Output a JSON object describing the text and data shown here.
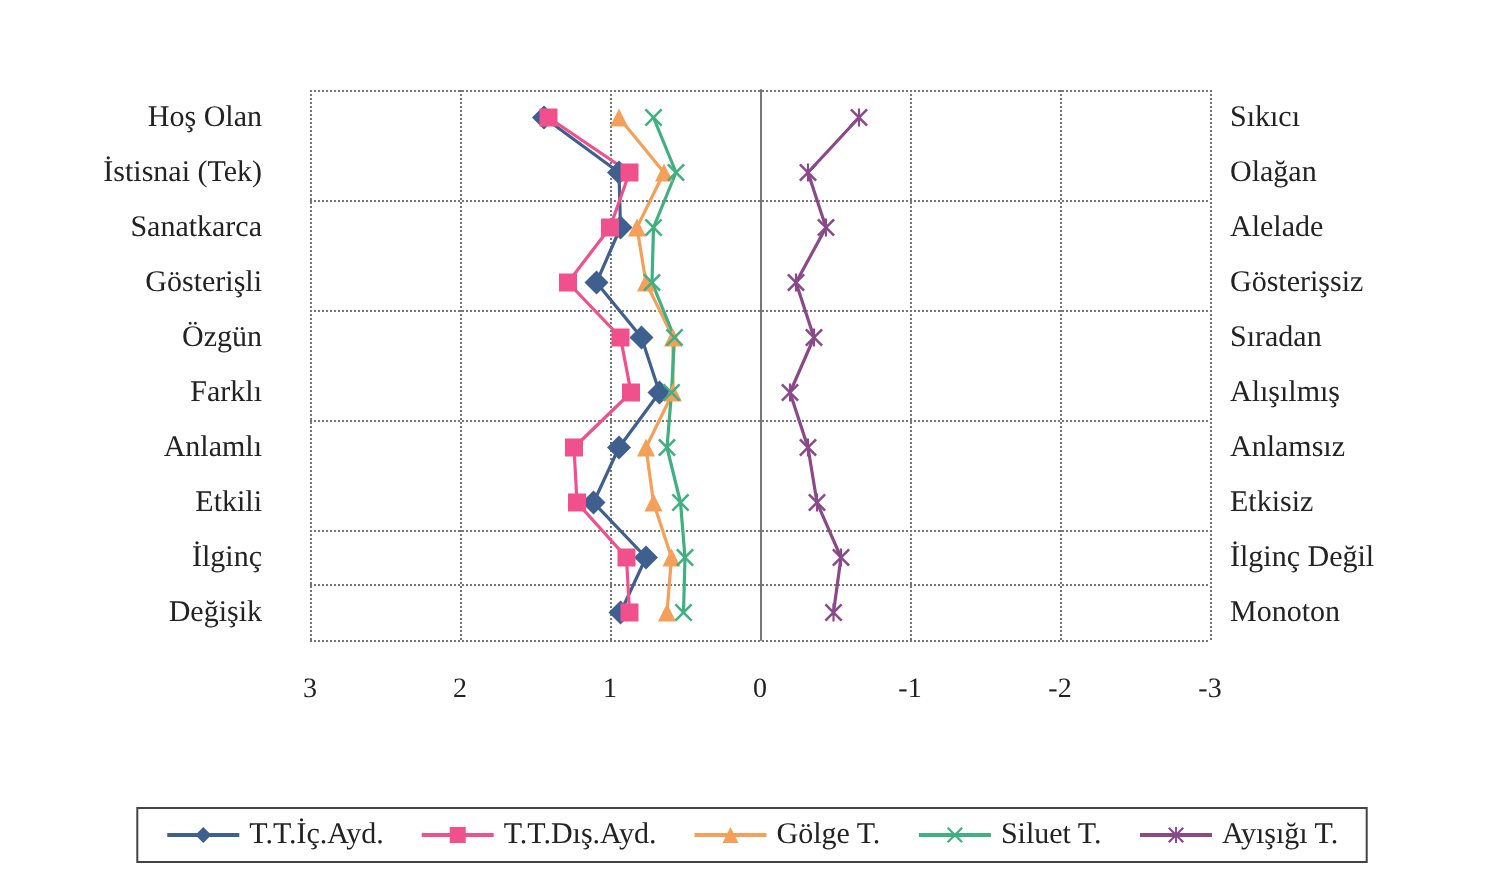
{
  "chart_data": {
    "type": "line",
    "categories": [
      "Hoş Olan",
      "İstisnai (Tek)",
      "Sanatkarca",
      "Gösterişli",
      "Özgün",
      "Farklı",
      "Anlamlı",
      "Etkili",
      "İlginç",
      "Değişik"
    ],
    "y2_categories": [
      "Sıkıcı",
      "Olağan",
      "Alelade",
      "Gösterişsiz",
      "Sıradan",
      "Alışılmış",
      "Anlamsız",
      "Etkisiz",
      "İlginç Değil",
      "Monoton"
    ],
    "orientation": "horizontal",
    "xlim": [
      3,
      -3
    ],
    "xticks": [
      3,
      2,
      1,
      0,
      -1,
      -2,
      -3
    ],
    "grid": true,
    "legend": "bottom",
    "series": [
      {
        "name": "T.T.İç.Ayd.",
        "color": "#3f5f8f",
        "marker": "diamond",
        "values": [
          1.44,
          0.94,
          0.93,
          1.09,
          0.79,
          0.67,
          0.94,
          1.11,
          0.76,
          0.93
        ]
      },
      {
        "name": "T.T.Dış.Ayd.",
        "color": "#f0508c",
        "marker": "square",
        "values": [
          1.41,
          0.87,
          1.0,
          1.28,
          0.93,
          0.86,
          1.24,
          1.22,
          0.89,
          0.87
        ]
      },
      {
        "name": "Gölge T.",
        "color": "#f5a05a",
        "marker": "triangle",
        "values": [
          0.94,
          0.64,
          0.82,
          0.76,
          0.58,
          0.58,
          0.76,
          0.71,
          0.59,
          0.62
        ]
      },
      {
        "name": "Siluet T.",
        "color": "#40b080",
        "marker": "cross",
        "values": [
          0.71,
          0.56,
          0.71,
          0.72,
          0.57,
          0.59,
          0.62,
          0.53,
          0.5,
          0.51
        ]
      },
      {
        "name": "Ayışığı T.",
        "color": "#8a4a8a",
        "marker": "star",
        "values": [
          -0.66,
          -0.32,
          -0.44,
          -0.24,
          -0.36,
          -0.2,
          -0.32,
          -0.38,
          -0.54,
          -0.49
        ]
      }
    ]
  }
}
